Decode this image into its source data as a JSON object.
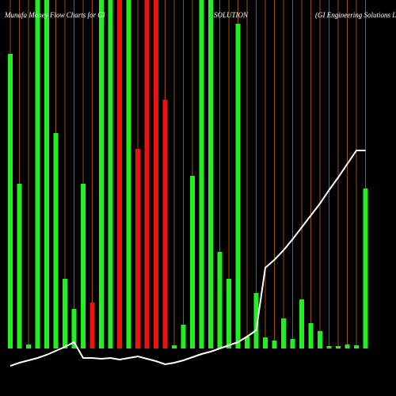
{
  "chart_data": {
    "type": "bar_line",
    "title": "Munafa Money Flow Charts for GI",
    "subtitle": "SOLUTION",
    "annotation": "(GI Engineering Solutions Li",
    "ylim": [
      -60,
      440
    ],
    "grid_color": "#b8650a",
    "series": [
      {
        "type": "bar",
        "values": [
          372,
          208,
          5,
          440,
          440,
          272,
          88,
          50,
          208,
          58,
          440,
          440,
          440,
          440,
          252,
          440,
          440,
          314,
          4,
          30,
          218,
          440,
          440,
          122,
          88,
          410,
          15,
          70,
          14,
          10,
          38,
          12,
          62,
          32,
          22,
          3,
          3,
          5,
          4,
          202
        ],
        "colors": [
          "#22ee22",
          "#22ee22",
          "#22ee22",
          "#22ee22",
          "#22ee22",
          "#22ee22",
          "#22ee22",
          "#22ee22",
          "#22ee22",
          "#ee1111",
          "#22ee22",
          "#22ee22",
          "#ee1111",
          "#22ee22",
          "#ee1111",
          "#ee1111",
          "#ee1111",
          "#ee1111",
          "#22ee22",
          "#22ee22",
          "#22ee22",
          "#22ee22",
          "#22ee22",
          "#22ee22",
          "#22ee22",
          "#22ee22",
          "#22ee22",
          "#22ee22",
          "#22ee22",
          "#22ee22",
          "#22ee22",
          "#22ee22",
          "#22ee22",
          "#22ee22",
          "#22ee22",
          "#22ee22",
          "#22ee22",
          "#22ee22",
          "#22ee22",
          "#22ee22"
        ]
      },
      {
        "type": "line",
        "color": "#ffffff",
        "values": [
          -22,
          -18,
          -15,
          -12,
          -8,
          -3,
          2,
          8,
          -12,
          -12,
          -13,
          -12,
          -14,
          -12,
          -10,
          -13,
          -16,
          -20,
          -18,
          -15,
          -11,
          -7,
          -4,
          0,
          4,
          8,
          15,
          23,
          102,
          112,
          124,
          138,
          153,
          168,
          183,
          200,
          216,
          233,
          250,
          250
        ]
      }
    ]
  }
}
